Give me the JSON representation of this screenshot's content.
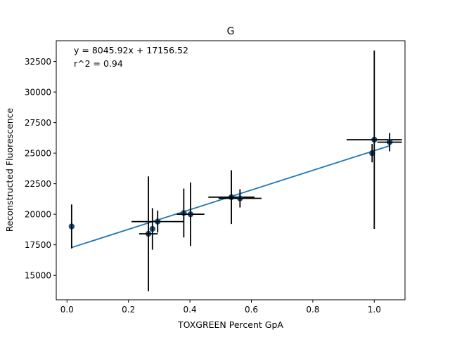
{
  "chart_data": {
    "type": "scatter",
    "title": "G",
    "xlabel": "TOXGREEN Percent GpA",
    "ylabel": "Reconstructed Fluorescence",
    "xlim": [
      -0.035,
      1.1
    ],
    "ylim": [
      13000,
      34200
    ],
    "xticks": [
      0.0,
      0.2,
      0.4,
      0.6,
      0.8,
      1.0
    ],
    "xtick_labels": [
      "0.0",
      "0.2",
      "0.4",
      "0.6",
      "0.8",
      "1.0"
    ],
    "yticks": [
      15000,
      17500,
      20000,
      22500,
      25000,
      27500,
      30000,
      32500
    ],
    "ytick_labels": [
      "15000",
      "17500",
      "20000",
      "22500",
      "25000",
      "27500",
      "30000",
      "32500"
    ],
    "grid": false,
    "annotations": [
      "y = 8045.92x + 17156.52",
      "r^2 = 0.94"
    ],
    "fit": {
      "slope": 8045.92,
      "intercept": 17156.52
    },
    "colors": {
      "points": "#1f4e79",
      "fit_line": "#1f77b4",
      "error_bars": "#000000"
    },
    "points": [
      {
        "x": 0.015,
        "y": 19000,
        "xerr": 0.0,
        "yerr": 1800
      },
      {
        "x": 0.265,
        "y": 18400,
        "xerr": 0.03,
        "yerr": 4700
      },
      {
        "x": 0.278,
        "y": 18800,
        "xerr": 0.0,
        "yerr": 1700
      },
      {
        "x": 0.295,
        "y": 19400,
        "xerr": 0.085,
        "yerr": 900
      },
      {
        "x": 0.38,
        "y": 20100,
        "xerr": 0.0,
        "yerr": 2000
      },
      {
        "x": 0.402,
        "y": 20000,
        "xerr": 0.045,
        "yerr": 2600
      },
      {
        "x": 0.535,
        "y": 21400,
        "xerr": 0.075,
        "yerr": 2200
      },
      {
        "x": 0.563,
        "y": 21300,
        "xerr": 0.07,
        "yerr": 750
      },
      {
        "x": 0.993,
        "y": 25000,
        "xerr": 0.0,
        "yerr": 750
      },
      {
        "x": 1.0,
        "y": 26100,
        "xerr": 0.09,
        "yerr": 7300
      },
      {
        "x": 1.05,
        "y": 25900,
        "xerr": 0.04,
        "yerr": 750
      }
    ]
  }
}
